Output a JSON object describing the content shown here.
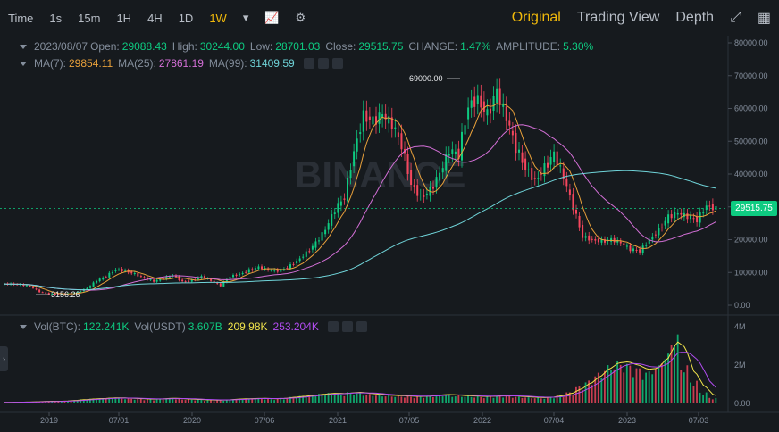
{
  "toolbar": {
    "items": [
      {
        "label": "Time",
        "active": false
      },
      {
        "label": "1s",
        "active": false
      },
      {
        "label": "15m",
        "active": false
      },
      {
        "label": "1H",
        "active": false
      },
      {
        "label": "4H",
        "active": false
      },
      {
        "label": "1D",
        "active": false
      },
      {
        "label": "1W",
        "active": true
      }
    ],
    "views": [
      {
        "label": "Original",
        "active": true
      },
      {
        "label": "Trading View",
        "active": false
      },
      {
        "label": "Depth",
        "active": false
      }
    ]
  },
  "ohlc": {
    "date": "2023/08/07",
    "open_label": "Open:",
    "open": "29088.43",
    "high_label": "High:",
    "high": "30244.00",
    "low_label": "Low:",
    "low": "28701.03",
    "close_label": "Close:",
    "close": "29515.75",
    "change_label": "CHANGE:",
    "change": "1.47%",
    "amplitude_label": "AMPLITUDE:",
    "amplitude": "5.30%"
  },
  "ma": {
    "ma7_label": "MA(7):",
    "ma7": "29854.11",
    "ma25_label": "MA(25):",
    "ma25": "27861.19",
    "ma99_label": "MA(99):",
    "ma99": "31409.59"
  },
  "volume": {
    "btc_label": "Vol(BTC):",
    "btc": "122.241K",
    "usdt_label": "Vol(USDT)",
    "usdt": "3.607B",
    "ma5": "209.98K",
    "ma10": "253.204K"
  },
  "chart_data": {
    "type": "candlestick",
    "watermark": "BINANCE",
    "price_axis": {
      "ticks": [
        "80000.00",
        "70000.00",
        "60000.00",
        "50000.00",
        "40000.00",
        "30000.00",
        "20000.00",
        "10000.00",
        "0.00"
      ],
      "range": [
        0,
        80000
      ]
    },
    "volume_axis": {
      "ticks": [
        "4M",
        "2M",
        "0.00"
      ],
      "range": [
        0,
        4000000
      ]
    },
    "time_axis": {
      "ticks": [
        "2019",
        "07/01",
        "2020",
        "07/06",
        "2021",
        "07/05",
        "2022",
        "07/04",
        "2023",
        "07/03"
      ]
    },
    "current_price": "29515.75",
    "annotations": {
      "high": "69000.00",
      "low": "3156.26"
    },
    "colors": {
      "up": "#0ecb81",
      "down": "#f6465d",
      "ma7": "#e9a13b",
      "ma25": "#d36fd6",
      "ma99": "#6fd3d8",
      "vol_ma5": "#f0e34b",
      "vol_ma10": "#b14cf0"
    },
    "close_path": [
      6500,
      6300,
      5800,
      4100,
      3500,
      3400,
      3600,
      4000,
      5200,
      7500,
      8800,
      11000,
      10500,
      9500,
      8300,
      7300,
      8200,
      9200,
      7200,
      7500,
      8800,
      7500,
      6000,
      8800,
      9500,
      10700,
      11600,
      10800,
      10500,
      11500,
      13500,
      16000,
      19000,
      23000,
      29000,
      33000,
      47000,
      58000,
      56000,
      58000,
      55000,
      49000,
      37000,
      33000,
      35000,
      40000,
      47000,
      46000,
      61000,
      63000,
      58000,
      65000,
      57000,
      48000,
      42000,
      38000,
      42000,
      46000,
      39000,
      30000,
      21000,
      20000,
      19500,
      20000,
      19000,
      17000,
      16500,
      20000,
      23000,
      27000,
      28000,
      27000,
      26000,
      30500,
      29500
    ],
    "volume_path": [
      0.06,
      0.07,
      0.08,
      0.1,
      0.12,
      0.11,
      0.14,
      0.18,
      0.22,
      0.25,
      0.27,
      0.3,
      0.28,
      0.26,
      0.24,
      0.22,
      0.25,
      0.28,
      0.24,
      0.22,
      0.2,
      0.18,
      0.17,
      0.2,
      0.24,
      0.25,
      0.27,
      0.26,
      0.24,
      0.3,
      0.35,
      0.4,
      0.45,
      0.5,
      0.55,
      0.5,
      0.6,
      0.55,
      0.5,
      0.45,
      0.42,
      0.4,
      0.38,
      0.36,
      0.4,
      0.45,
      0.48,
      0.42,
      0.4,
      0.38,
      0.36,
      0.4,
      0.42,
      0.38,
      0.35,
      0.32,
      0.3,
      0.35,
      0.45,
      0.6,
      0.9,
      1.2,
      1.6,
      2.0,
      2.2,
      2.1,
      1.9,
      1.7,
      2.0,
      2.6,
      3.6,
      2.0,
      1.2,
      0.6,
      0.3
    ]
  }
}
